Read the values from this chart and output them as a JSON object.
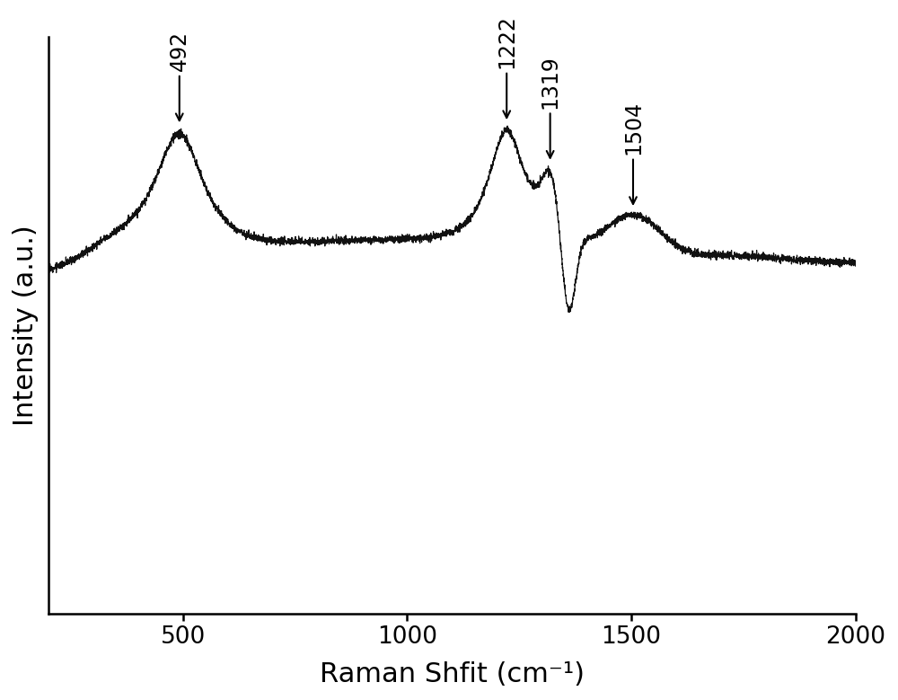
{
  "xlabel": "Raman Shfit (cm⁻¹)",
  "ylabel": "Intensity (a.u.)",
  "xlim": [
    200,
    2000
  ],
  "line_color": "#111111",
  "background_color": "#ffffff",
  "annotations": [
    {
      "label": "492",
      "x": 492
    },
    {
      "label": "1222",
      "x": 1222
    },
    {
      "label": "1319",
      "x": 1319
    },
    {
      "label": "1504",
      "x": 1504
    }
  ],
  "xlabel_fontsize": 22,
  "ylabel_fontsize": 22,
  "tick_fontsize": 19,
  "annotation_fontsize": 17
}
